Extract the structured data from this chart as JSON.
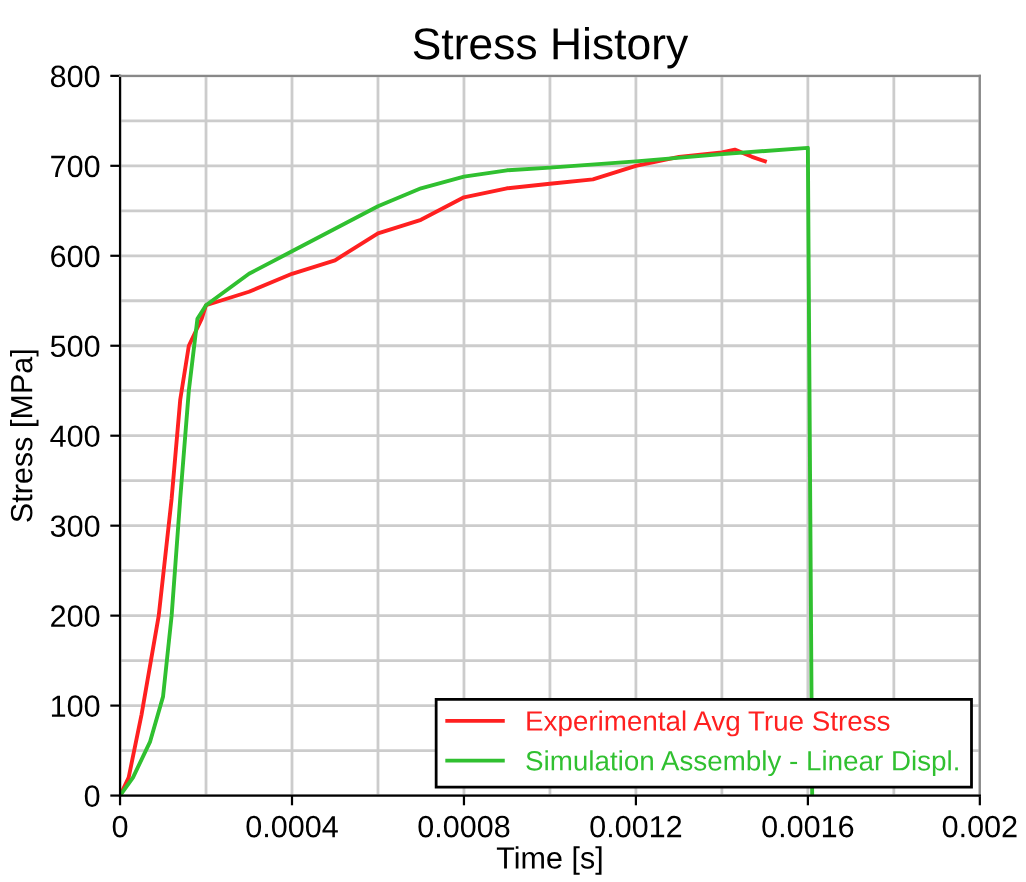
{
  "chart_data": {
    "type": "line",
    "title": "Stress History",
    "xlabel": "Time [s]",
    "ylabel": "Stress [MPa]",
    "xlim": [
      0,
      0.002
    ],
    "xticks": [
      0,
      0.0004,
      0.0008,
      0.0012,
      0.0016,
      0.002
    ],
    "ylim": [
      0,
      800
    ],
    "yticks": [
      0,
      100,
      200,
      300,
      400,
      500,
      600,
      700,
      800
    ],
    "grid": true,
    "legend": "bottom right",
    "marker": "none",
    "line_style": "solid",
    "series": [
      {
        "name": "Experimental Avg True Stress",
        "color": "#ff2020",
        "x": [
          0,
          2e-05,
          5e-05,
          9e-05,
          0.00012,
          0.00014,
          0.00016,
          0.00019,
          0.0002,
          0.0003,
          0.0004,
          0.0005,
          0.0006,
          0.0007,
          0.0008,
          0.0009,
          0.001,
          0.0011,
          0.0012,
          0.0013,
          0.0014,
          0.00143,
          0.00147,
          0.0015
        ],
        "values": [
          0,
          20,
          90,
          200,
          330,
          440,
          500,
          530,
          545,
          560,
          580,
          595,
          625,
          640,
          665,
          675,
          680,
          685,
          700,
          710,
          715,
          718,
          710,
          705
        ]
      },
      {
        "name": "Simulation Assembly - Linear Displ.",
        "color": "#30c030",
        "x": [
          0,
          3e-05,
          7e-05,
          0.0001,
          0.00012,
          0.00014,
          0.00016,
          0.00018,
          0.0002,
          0.0003,
          0.0004,
          0.0005,
          0.0006,
          0.0007,
          0.0008,
          0.0009,
          0.001,
          0.0012,
          0.0014,
          0.0016,
          0.00161
        ],
        "values": [
          0,
          20,
          60,
          110,
          200,
          330,
          450,
          530,
          545,
          580,
          605,
          630,
          655,
          675,
          688,
          695,
          698,
          705,
          713,
          720,
          0
        ]
      }
    ]
  }
}
